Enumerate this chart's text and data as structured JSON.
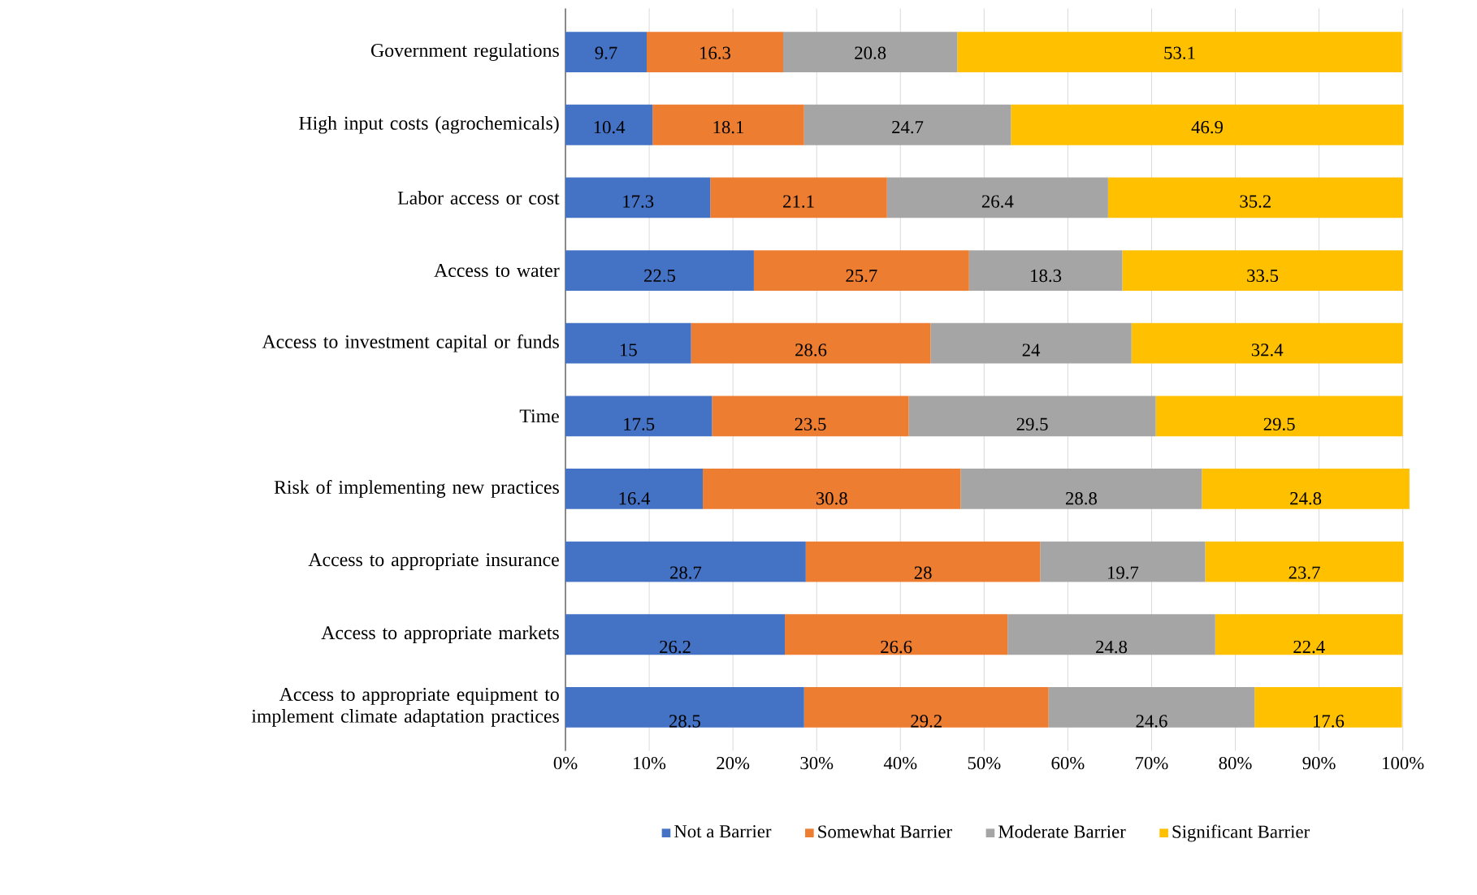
{
  "chart_data": {
    "type": "bar",
    "orientation": "horizontal",
    "stacked": true,
    "data_labels": true,
    "grid": "x",
    "legend": "bottom",
    "categories": [
      "Government regulations",
      "High input costs (agrochemicals)",
      "Labor access or cost",
      "Access to water",
      "Access to investment capital or funds",
      "Time",
      "Risk of implementing new practices",
      "Access to appropriate insurance",
      "Access to appropriate markets",
      "Access to appropriate equipment to implement climate adaptation practices"
    ],
    "series": [
      {
        "name": "Not a Barrier",
        "color": "#4472c4",
        "values": [
          9.7,
          10.4,
          17.3,
          22.5,
          15,
          17.5,
          16.4,
          28.7,
          26.2,
          28.5
        ]
      },
      {
        "name": "Somewhat Barrier",
        "color": "#ed7d31",
        "values": [
          16.3,
          18.1,
          21.1,
          25.7,
          28.6,
          23.5,
          30.8,
          28,
          26.6,
          29.2
        ]
      },
      {
        "name": "Moderate Barrier",
        "color": "#a5a5a5",
        "values": [
          20.8,
          24.7,
          26.4,
          18.3,
          24,
          29.5,
          28.8,
          19.7,
          24.8,
          24.6
        ]
      },
      {
        "name": "Significant Barrier",
        "color": "#ffc000",
        "values": [
          53.1,
          46.9,
          35.2,
          33.5,
          32.4,
          29.5,
          24.8,
          23.7,
          22.4,
          17.6
        ]
      }
    ],
    "xlim": [
      0,
      100.8
    ],
    "xticks": [
      {
        "value": 0,
        "label": "0%"
      },
      {
        "value": 10,
        "label": "10%"
      },
      {
        "value": 20,
        "label": "20%"
      },
      {
        "value": 30,
        "label": "30%"
      },
      {
        "value": 40,
        "label": "40%"
      },
      {
        "value": 50,
        "label": "50%"
      },
      {
        "value": 60,
        "label": "60%"
      },
      {
        "value": 70,
        "label": "70%"
      },
      {
        "value": 80,
        "label": "80%"
      },
      {
        "value": 90,
        "label": "90%"
      },
      {
        "value": 100,
        "label": "100%"
      }
    ]
  }
}
